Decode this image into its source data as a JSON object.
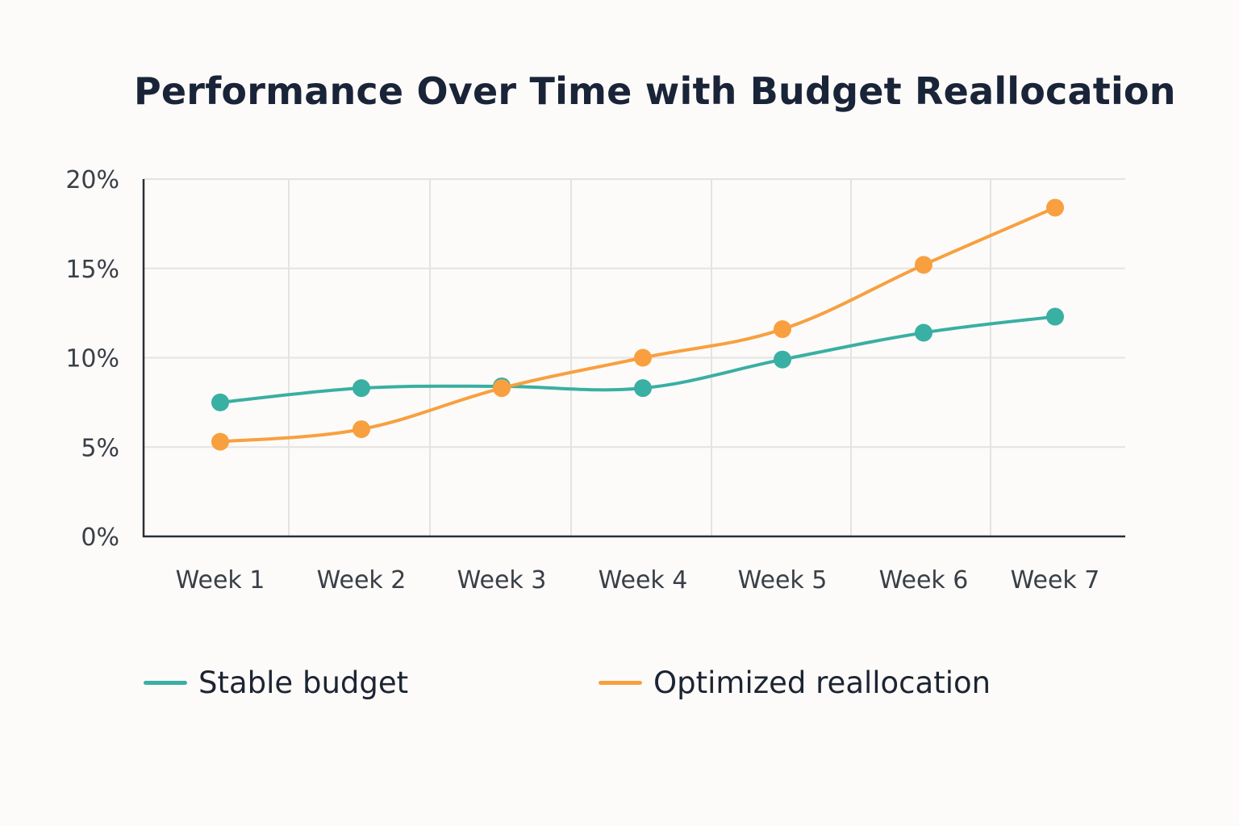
{
  "chart_data": {
    "type": "line",
    "title": "Performance Over Time with Budget Reallocation",
    "xlabel": "",
    "ylabel": "",
    "categories": [
      "Week 1",
      "Week 2",
      "Week 3",
      "Week 4",
      "Week 5",
      "Week 6",
      "Week 7"
    ],
    "yticks": [
      "0%",
      "5%",
      "10%",
      "15%",
      "20%"
    ],
    "ylim": [
      0,
      20
    ],
    "grid": true,
    "legend_position": "bottom",
    "series": [
      {
        "name": "Stable budget",
        "color": "#3aafa3",
        "values": [
          7.5,
          8.3,
          8.4,
          8.3,
          9.9,
          11.4,
          12.3
        ]
      },
      {
        "name": "Optimized reallocation",
        "color": "#f8a03f",
        "values": [
          5.3,
          6.0,
          8.3,
          10.0,
          11.6,
          15.2,
          18.4
        ]
      }
    ]
  }
}
